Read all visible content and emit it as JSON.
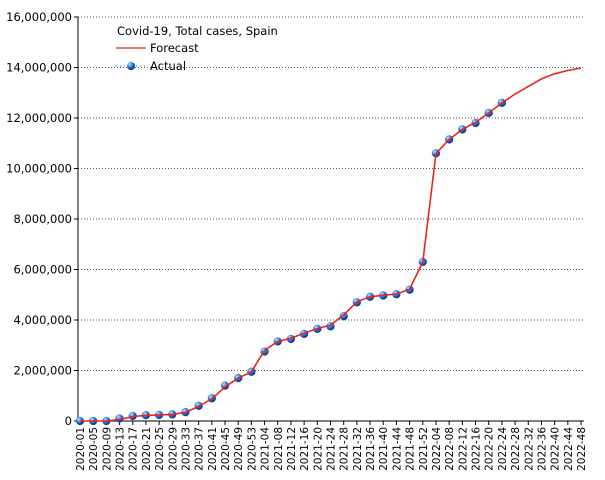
{
  "chart_data": {
    "type": "line",
    "title": "Covid-19, Total cases, Spain",
    "categories": [
      "2020-01",
      "2020-05",
      "2020-09",
      "2020-13",
      "2020-17",
      "2020-21",
      "2020-25",
      "2020-29",
      "2020-33",
      "2020-37",
      "2020-41",
      "2020-45",
      "2020-49",
      "2020-53",
      "2021-04",
      "2021-08",
      "2021-12",
      "2021-16",
      "2021-20",
      "2021-24",
      "2021-28",
      "2021-32",
      "2021-36",
      "2021-40",
      "2021-44",
      "2021-48",
      "2021-52",
      "2022-04",
      "2022-08",
      "2022-12",
      "2022-16",
      "2022-20",
      "2022-24",
      "2022-28",
      "2022-32",
      "2022-36",
      "2022-40",
      "2022-44",
      "2022-48"
    ],
    "series": [
      {
        "name": "Forecast",
        "color": "#e8261c",
        "values": [
          0,
          0,
          0,
          60000,
          180000,
          220000,
          240000,
          260000,
          340000,
          580000,
          880000,
          1350000,
          1700000,
          1950000,
          2800000,
          3150000,
          3280000,
          3480000,
          3660000,
          3800000,
          4200000,
          4720000,
          4920000,
          4980000,
          5030000,
          5220000,
          6300000,
          10600000,
          11150000,
          11550000,
          11820000,
          12200000,
          12600000,
          12950000,
          13250000,
          13550000,
          13750000,
          13880000,
          13980000
        ]
      },
      {
        "name": "Actual",
        "color": "#2a6fd6",
        "values": [
          0,
          0,
          0,
          100000,
          200000,
          230000,
          240000,
          260000,
          350000,
          600000,
          900000,
          1400000,
          1700000,
          1950000,
          2750000,
          3150000,
          3250000,
          3450000,
          3650000,
          3750000,
          4150000,
          4700000,
          4920000,
          4970000,
          5020000,
          5200000,
          6300000,
          10600000,
          11150000,
          11550000,
          11800000,
          12200000,
          12600000,
          null,
          null,
          null,
          null,
          null,
          null
        ]
      }
    ],
    "ylim": [
      0,
      16000000
    ],
    "yticks": [
      {
        "value": 0,
        "label": "0"
      },
      {
        "value": 2000000,
        "label": "2,000,000"
      },
      {
        "value": 4000000,
        "label": "4,000,000"
      },
      {
        "value": 6000000,
        "label": "6,000,000"
      },
      {
        "value": 8000000,
        "label": "8,000,000"
      },
      {
        "value": 10000000,
        "label": "10,000,000"
      },
      {
        "value": 12000000,
        "label": "12,000,000"
      },
      {
        "value": 14000000,
        "label": "14,000,000"
      },
      {
        "value": 16000000,
        "label": "16,000,000"
      }
    ],
    "grid": true,
    "legend": "top-left"
  }
}
